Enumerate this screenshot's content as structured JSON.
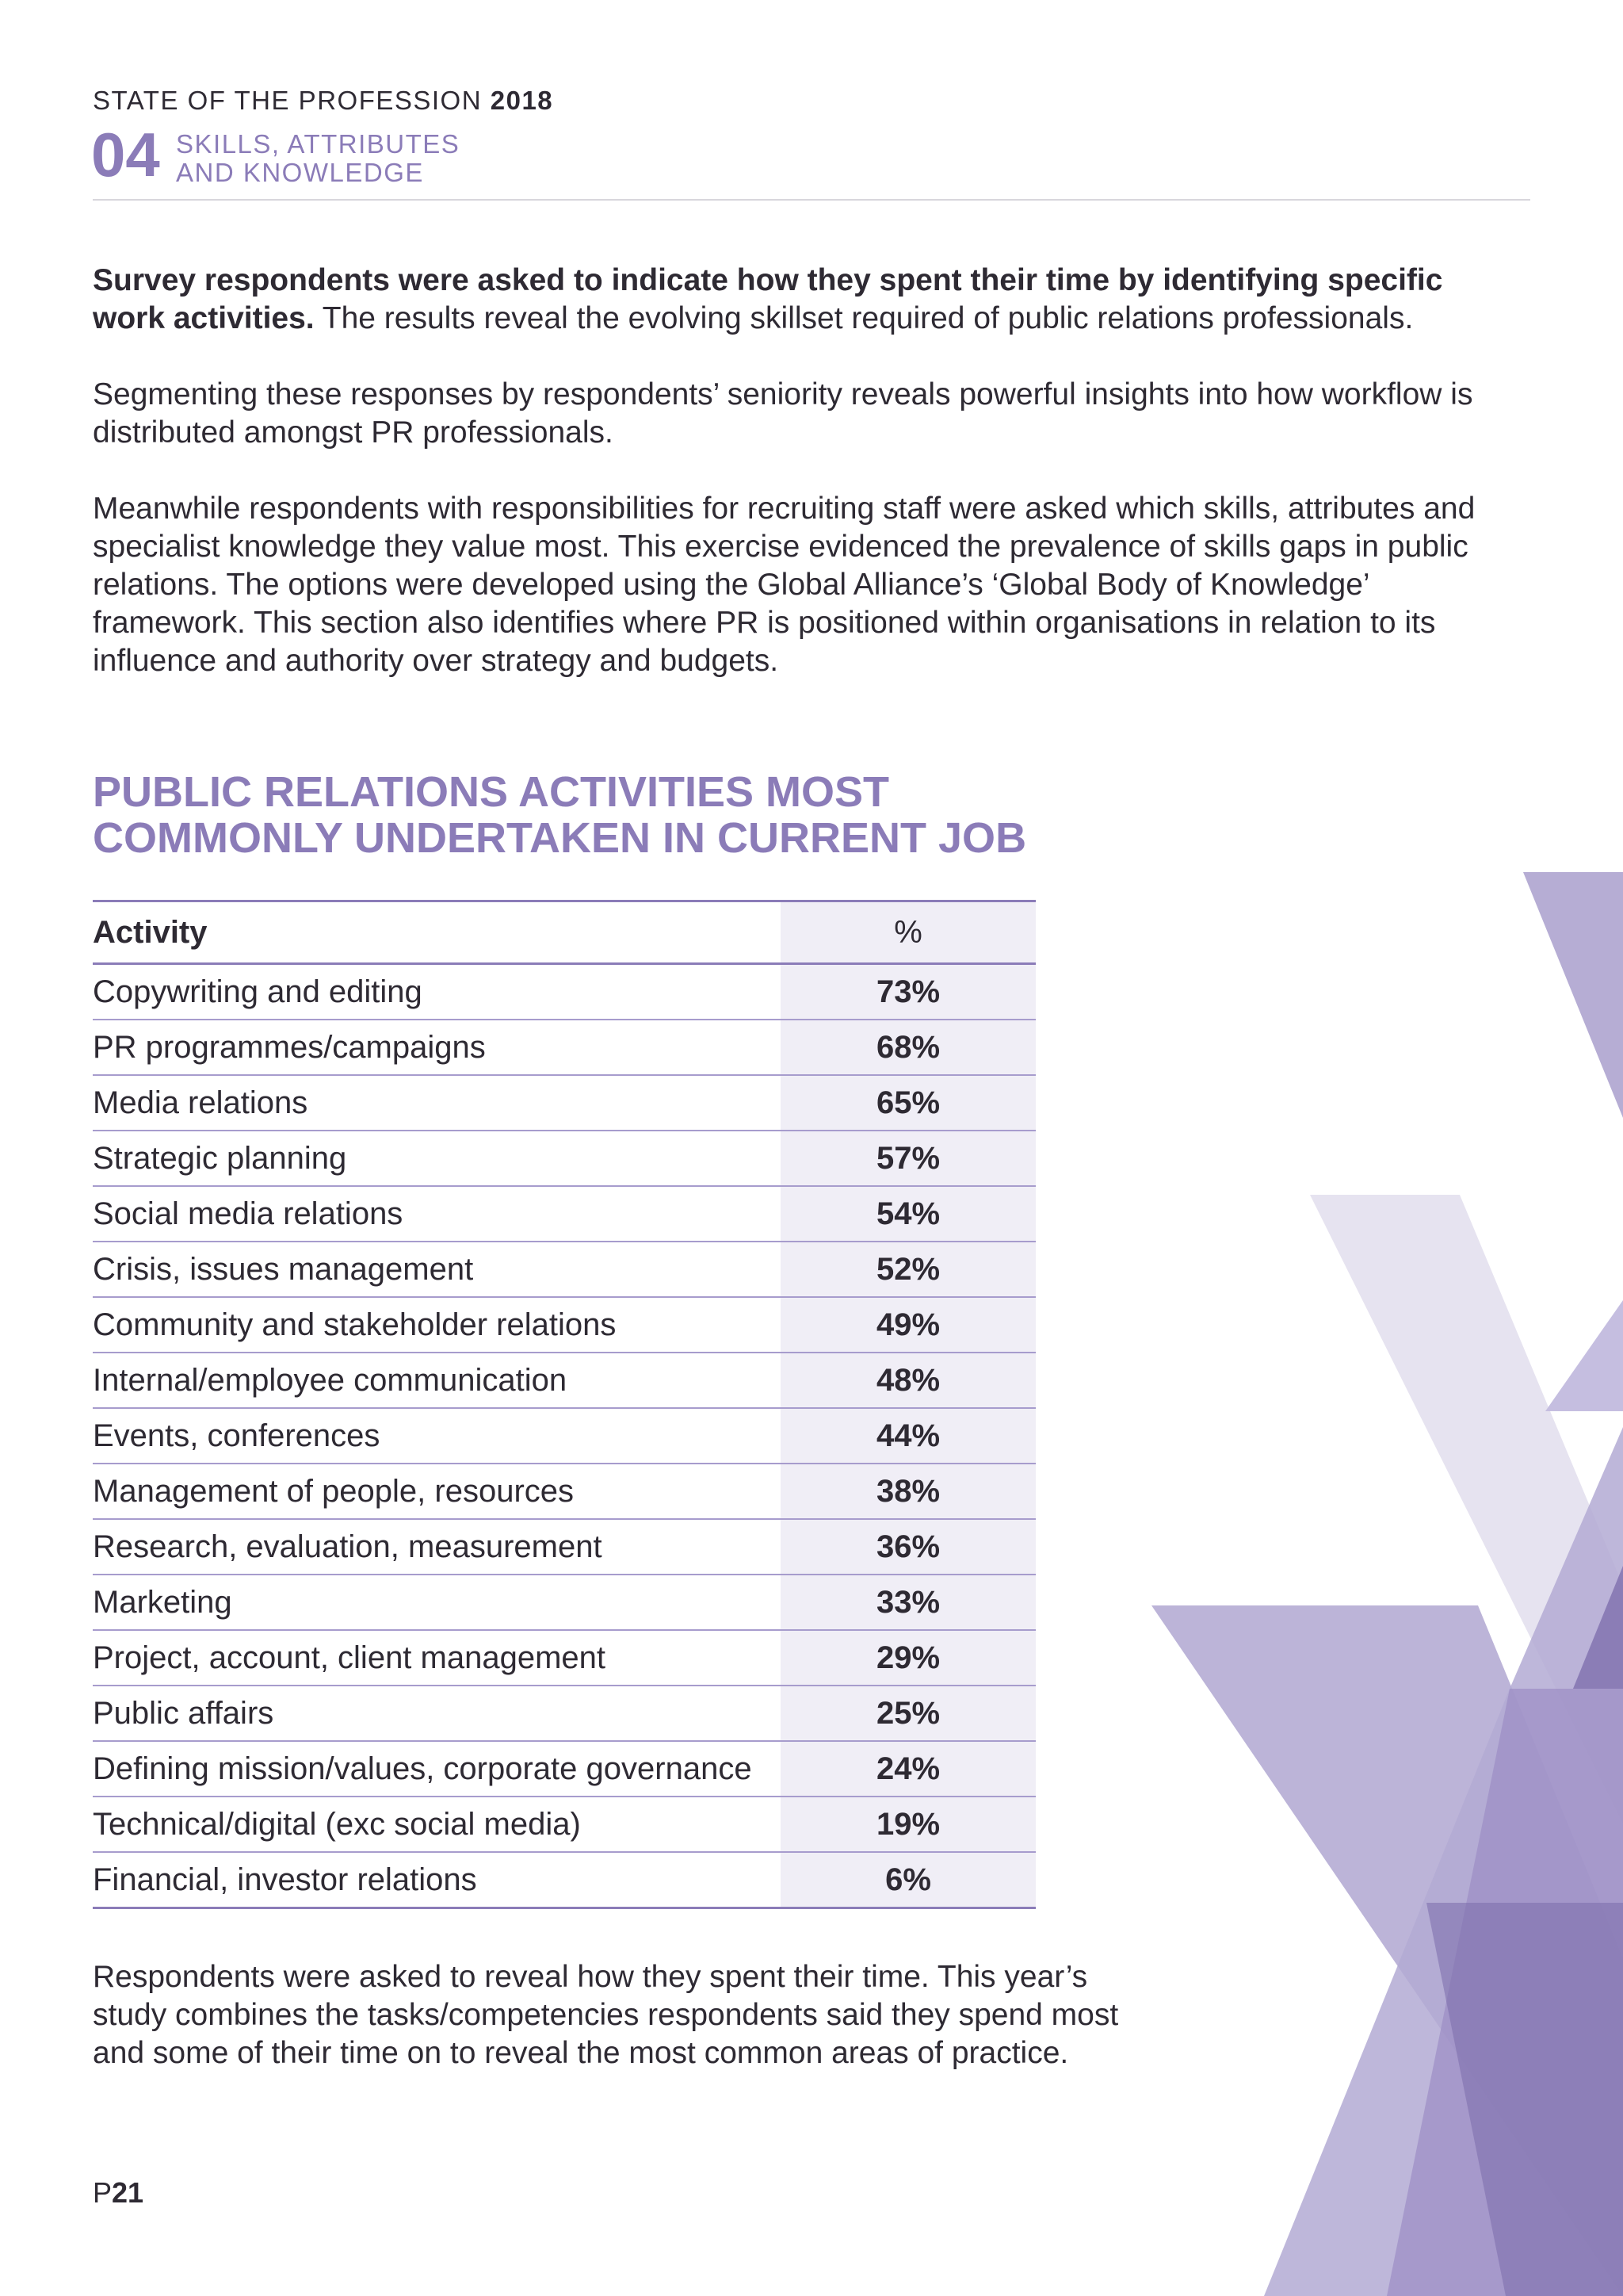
{
  "header": {
    "publication": "STATE OF THE PROFESSION",
    "year": "2018",
    "section_number": "04",
    "section_name_line1": "SKILLS, ATTRIBUTES",
    "section_name_line2": "AND KNOWLEDGE"
  },
  "intro": {
    "p1_bold": "Survey respondents were asked to indicate how they spent their time by identifying specific work activities.",
    "p1_rest": " The results reveal the evolving skillset required of public relations professionals.",
    "p2": "Segmenting these responses by respondents’ seniority reveals powerful insights into how workflow is distributed amongst PR professionals.",
    "p3": "Meanwhile respondents with responsibilities for recruiting staff were asked which skills, attributes and specialist knowledge they value most. This exercise evidenced the prevalence of skills gaps in public relations. The options were developed using the Global Alliance’s ‘Global Body of Knowledge’ framework. This section also identifies where PR is positioned within organisations in relation to its influence and authority over strategy and budgets."
  },
  "table": {
    "title_line1": "PUBLIC RELATIONS ACTIVITIES MOST",
    "title_line2": "COMMONLY UNDERTAKEN IN CURRENT JOB",
    "col_activity": "Activity",
    "col_pct": "%",
    "rows": [
      {
        "activity": "Copywriting and editing",
        "pct": "73%"
      },
      {
        "activity": "PR programmes/campaigns",
        "pct": "68%"
      },
      {
        "activity": "Media relations",
        "pct": "65%"
      },
      {
        "activity": "Strategic planning",
        "pct": "57%"
      },
      {
        "activity": "Social media relations",
        "pct": "54%"
      },
      {
        "activity": "Crisis, issues management",
        "pct": "52%"
      },
      {
        "activity": "Community and stakeholder relations",
        "pct": "49%"
      },
      {
        "activity": "Internal/employee communication",
        "pct": "48%"
      },
      {
        "activity": "Events, conferences",
        "pct": "44%"
      },
      {
        "activity": "Management of people, resources",
        "pct": "38%"
      },
      {
        "activity": "Research, evaluation, measurement",
        "pct": "36%"
      },
      {
        "activity": "Marketing",
        "pct": "33%"
      },
      {
        "activity": "Project, account, client management",
        "pct": "29%"
      },
      {
        "activity": "Public affairs",
        "pct": "25%"
      },
      {
        "activity": "Defining mission/values, corporate governance",
        "pct": "24%"
      },
      {
        "activity": "Technical/digital (exc social media)",
        "pct": "19%"
      },
      {
        "activity": "Financial, investor relations",
        "pct": "6%"
      }
    ]
  },
  "footnote": "Respondents were asked to reveal how they spent their time. This year’s study combines the tasks/competencies respondents said they spend most and some of their time on to reveal the most common areas of practice.",
  "page": {
    "prefix": "P",
    "number": "21"
  },
  "colors": {
    "accent": "#8b7cb8",
    "text": "#2e2a33",
    "pct_column_bg": "#f0eef6"
  }
}
